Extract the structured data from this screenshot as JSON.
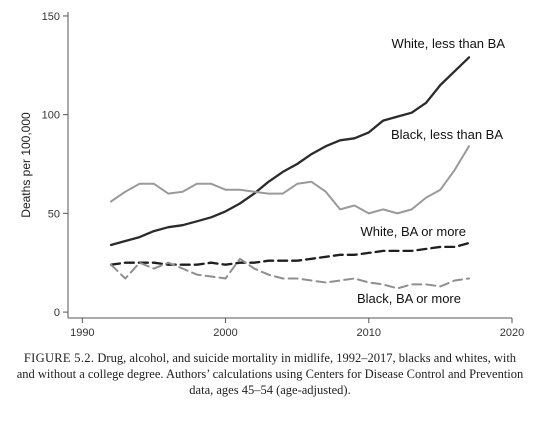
{
  "chart_data": {
    "type": "line",
    "title": "",
    "xlabel": "",
    "ylabel": "Deaths per 100,000",
    "xlim": [
      1989,
      2020
    ],
    "ylim": [
      -3,
      152
    ],
    "x_ticks": [
      1990,
      2000,
      2010,
      2020
    ],
    "y_ticks": [
      0,
      50,
      100,
      150
    ],
    "grid": false,
    "legend": "none (direct line labels)",
    "x": [
      1992,
      1993,
      1994,
      1995,
      1996,
      1997,
      1998,
      1999,
      2000,
      2001,
      2002,
      2003,
      2004,
      2005,
      2006,
      2007,
      2008,
      2009,
      2010,
      2011,
      2012,
      2013,
      2014,
      2015,
      2016,
      2017
    ],
    "series": [
      {
        "name": "White, less than BA",
        "color": "#2b2b2b",
        "dash": "solid",
        "values": [
          34,
          36,
          38,
          41,
          43,
          44,
          46,
          48,
          51,
          55,
          60,
          66,
          71,
          75,
          80,
          84,
          87,
          88,
          91,
          97,
          99,
          101,
          106,
          115,
          122,
          129
        ]
      },
      {
        "name": "Black, less than BA",
        "color": "#9a9a9a",
        "dash": "solid",
        "values": [
          56,
          61,
          65,
          65,
          60,
          61,
          65,
          65,
          62,
          62,
          61,
          60,
          60,
          65,
          66,
          61,
          52,
          54,
          50,
          52,
          50,
          52,
          58,
          62,
          72,
          84
        ]
      },
      {
        "name": "White, BA or more",
        "color": "#1f1f1f",
        "dash": "dashed",
        "values": [
          24,
          25,
          25,
          25,
          24,
          24,
          24,
          25,
          24,
          25,
          25,
          26,
          26,
          26,
          27,
          28,
          29,
          29,
          30,
          31,
          31,
          31,
          32,
          33,
          33,
          35
        ]
      },
      {
        "name": "Black, BA or more",
        "color": "#8f8f8f",
        "dash": "dashed",
        "values": [
          24,
          17,
          25,
          22,
          25,
          22,
          19,
          18,
          17,
          27,
          22,
          19,
          17,
          17,
          16,
          15,
          16,
          17,
          15,
          14,
          12,
          14,
          14,
          13,
          16,
          17
        ]
      }
    ]
  },
  "caption": {
    "figure_number": "FIGURE 5.2.",
    "text": "Drug, alcohol, and suicide mortality in midlife, 1992–2017, blacks and whites, with and without a college degree. Authors’ calculations using Centers for Disease Control and Prevention data, ages 45–54 (age-adjusted)."
  }
}
